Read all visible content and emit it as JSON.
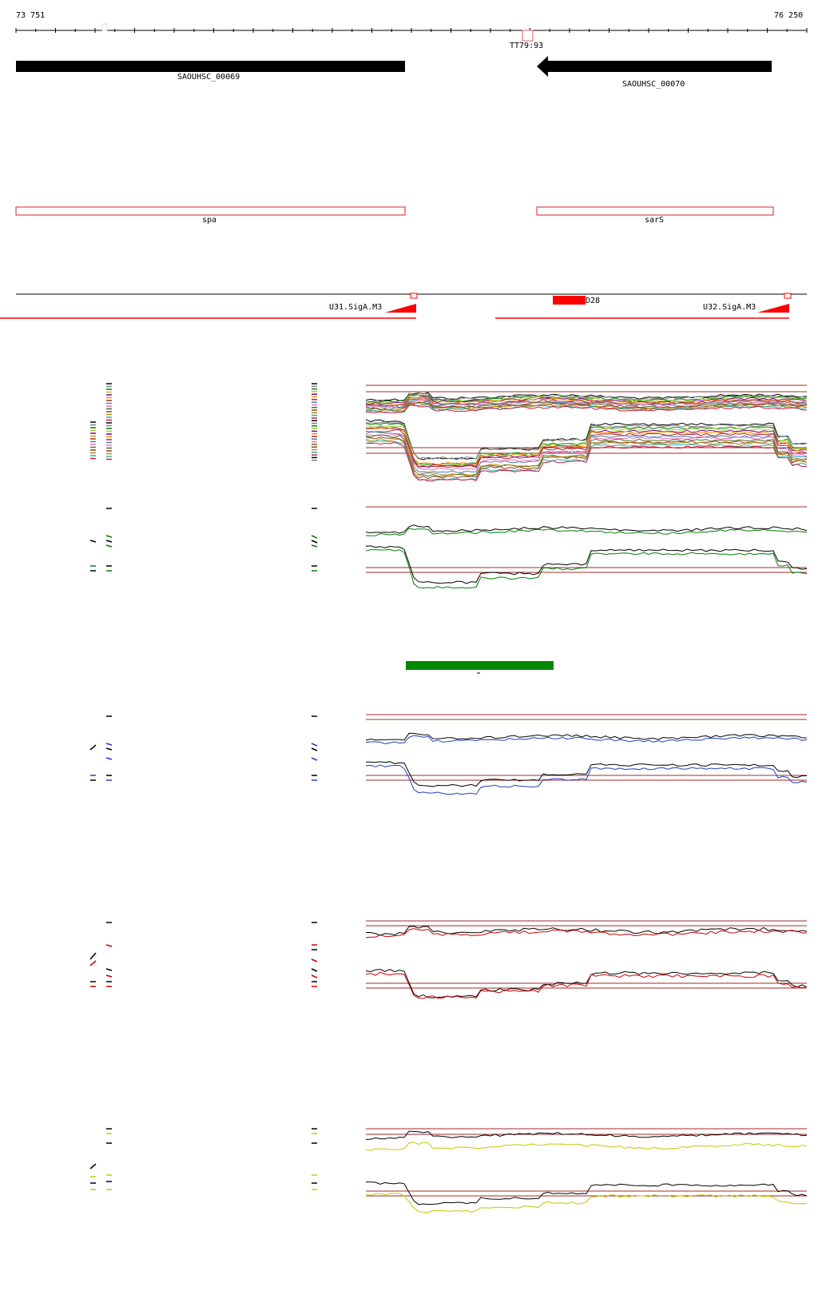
{
  "coordinates": {
    "start": "73 751",
    "end": "76 250"
  },
  "terminator": {
    "label": "TT79:93"
  },
  "genes": [
    {
      "locus_tag": "SAOUHSC_00069",
      "name": "spa",
      "strand": "+"
    },
    {
      "locus_tag": "SAOUHSC_00070",
      "name": "sarS",
      "strand": "-"
    }
  ],
  "promoters": [
    {
      "label": "U31.SigA.M3"
    },
    {
      "label": "U32.SigA.M3"
    }
  ],
  "feature": {
    "label": "D28"
  },
  "colors": {
    "gene_fill": "#000000",
    "gene_outline": "#e02020",
    "promoter": "#ff0000",
    "feature": "#ff0000",
    "bar": "#008800",
    "panel1_series": [
      "#000000",
      "#808080",
      "#008000",
      "#9acd32",
      "#800080",
      "#ff8c00",
      "#a52a2a",
      "#4682b4",
      "#ff69b4",
      "#556b2f",
      "#8b4513",
      "#b8860b",
      "#20b2aa",
      "#dc143c"
    ],
    "panel2_series": [
      "#000000",
      "#008000"
    ],
    "panel3_series": [
      "#000000",
      "#1f3fbf"
    ],
    "panel4_series": [
      "#000000",
      "#cc0000"
    ],
    "panel5_series": [
      "#000000",
      "#c8c800"
    ],
    "reference_line": "#a52a2a"
  }
}
